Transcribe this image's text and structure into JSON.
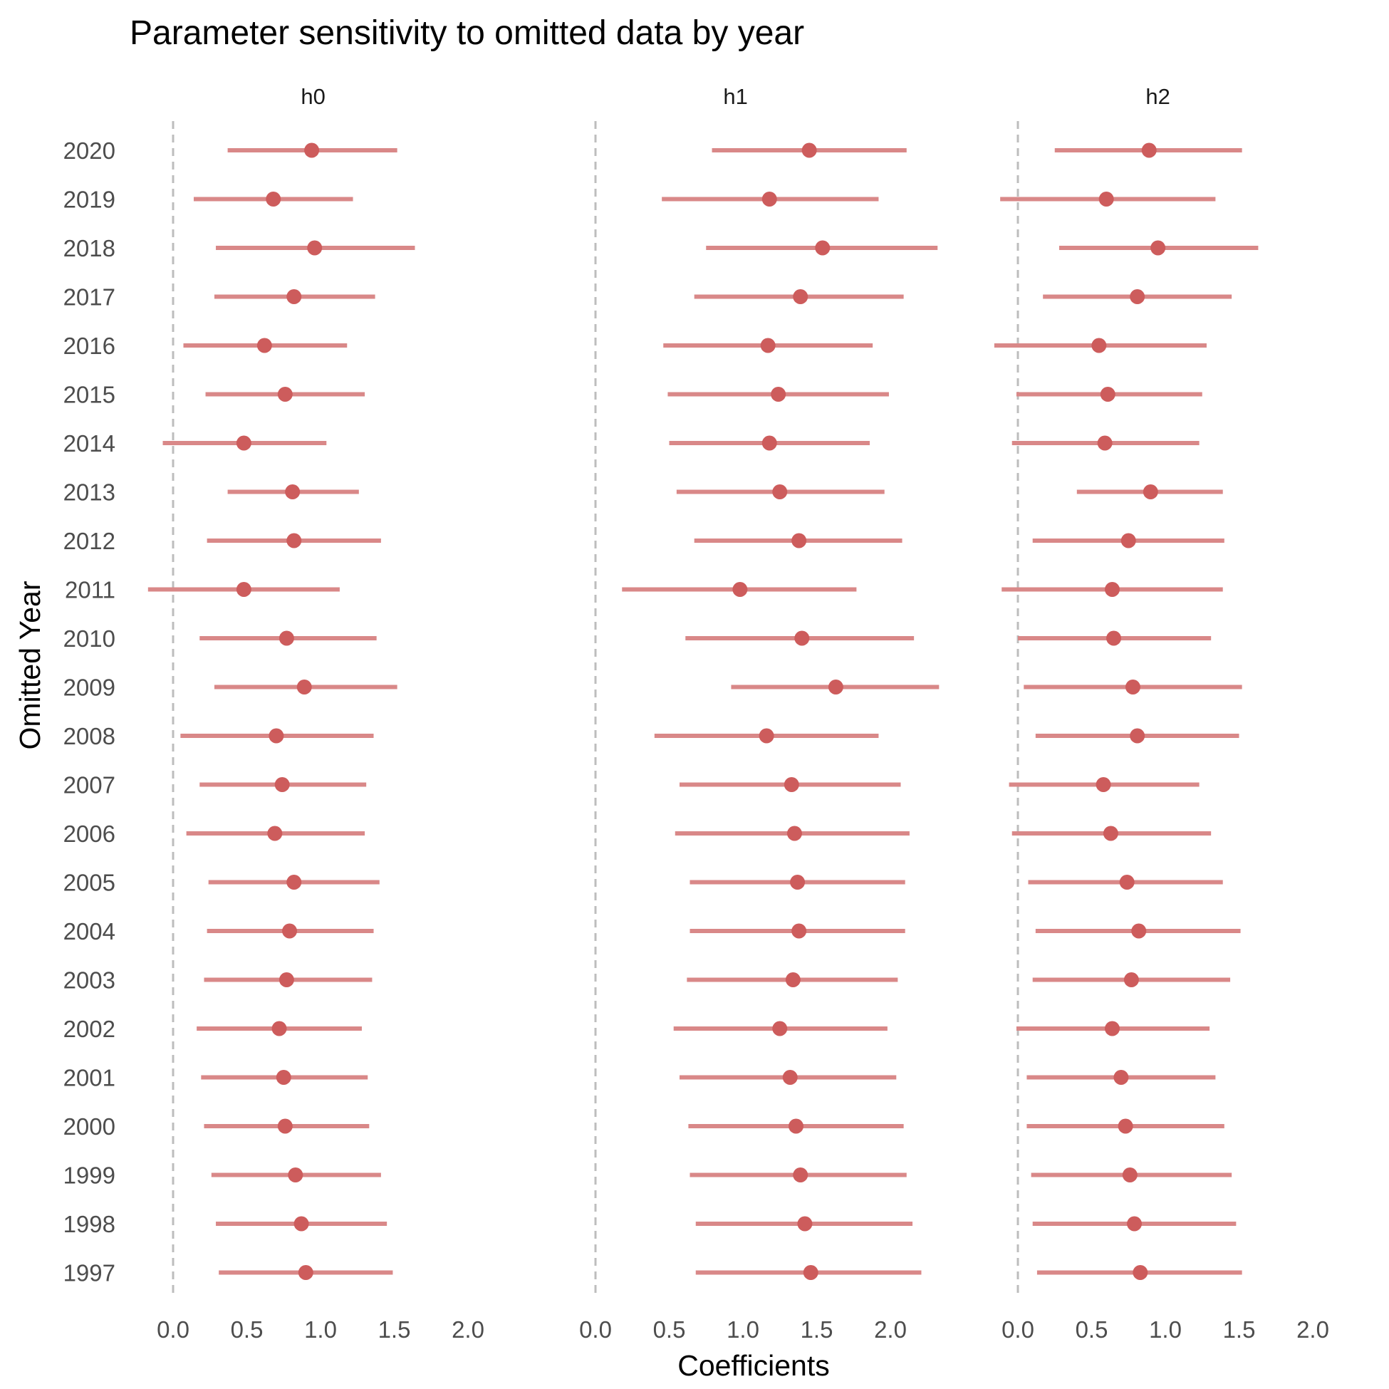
{
  "chart_data": {
    "type": "scatter",
    "subtype": "dot-and-interval (coefficient plot), faceted",
    "title": "Parameter sensitivity to omitted data by year",
    "xlabel": "Coefficients",
    "ylabel": "Omitted Year",
    "xlim": [
      -0.2,
      2.1
    ],
    "x_ticks": [
      0.0,
      0.5,
      1.0,
      1.5,
      2.0
    ],
    "x_tick_labels": [
      "0.0",
      "0.5",
      "1.0",
      "1.5",
      "2.0"
    ],
    "reference_line": {
      "x": 0,
      "style": "dashed",
      "color": "#bdbdbd"
    },
    "grid": false,
    "colors": {
      "point": "#cd5c5c",
      "interval": "#d98888"
    },
    "categories": [
      "2020",
      "2019",
      "2018",
      "2017",
      "2016",
      "2015",
      "2014",
      "2013",
      "2012",
      "2011",
      "2010",
      "2009",
      "2008",
      "2007",
      "2006",
      "2005",
      "2004",
      "2003",
      "2002",
      "2001",
      "2000",
      "1999",
      "1998",
      "1997"
    ],
    "facets": [
      {
        "name": "h0",
        "estimate": [
          0.94,
          0.68,
          0.96,
          0.82,
          0.62,
          0.76,
          0.48,
          0.81,
          0.82,
          0.48,
          0.77,
          0.89,
          0.7,
          0.74,
          0.69,
          0.82,
          0.79,
          0.77,
          0.72,
          0.75,
          0.76,
          0.83,
          0.87,
          0.9
        ],
        "lower": [
          0.37,
          0.14,
          0.29,
          0.28,
          0.07,
          0.22,
          -0.07,
          0.37,
          0.23,
          -0.17,
          0.18,
          0.28,
          0.05,
          0.18,
          0.09,
          0.24,
          0.23,
          0.21,
          0.16,
          0.19,
          0.21,
          0.26,
          0.29,
          0.31
        ],
        "upper": [
          1.52,
          1.22,
          1.64,
          1.37,
          1.18,
          1.3,
          1.04,
          1.26,
          1.41,
          1.13,
          1.38,
          1.52,
          1.36,
          1.31,
          1.3,
          1.4,
          1.36,
          1.35,
          1.28,
          1.32,
          1.33,
          1.41,
          1.45,
          1.49
        ]
      },
      {
        "name": "h1",
        "estimate": [
          1.45,
          1.18,
          1.54,
          1.39,
          1.17,
          1.24,
          1.18,
          1.25,
          1.38,
          0.98,
          1.4,
          1.63,
          1.16,
          1.33,
          1.35,
          1.37,
          1.38,
          1.34,
          1.25,
          1.32,
          1.36,
          1.39,
          1.42,
          1.46
        ],
        "lower": [
          0.79,
          0.45,
          0.75,
          0.67,
          0.46,
          0.49,
          0.5,
          0.55,
          0.67,
          0.18,
          0.61,
          0.92,
          0.4,
          0.57,
          0.54,
          0.64,
          0.64,
          0.62,
          0.53,
          0.57,
          0.63,
          0.64,
          0.68,
          0.68
        ],
        "upper": [
          2.11,
          1.92,
          2.32,
          2.09,
          1.88,
          1.99,
          1.86,
          1.96,
          2.08,
          1.77,
          2.16,
          2.33,
          1.92,
          2.07,
          2.13,
          2.1,
          2.1,
          2.05,
          1.98,
          2.04,
          2.09,
          2.11,
          2.15,
          2.21
        ]
      },
      {
        "name": "h2",
        "estimate": [
          0.89,
          0.6,
          0.95,
          0.81,
          0.55,
          0.61,
          0.59,
          0.9,
          0.75,
          0.64,
          0.65,
          0.78,
          0.81,
          0.58,
          0.63,
          0.74,
          0.82,
          0.77,
          0.64,
          0.7,
          0.73,
          0.76,
          0.79,
          0.83
        ],
        "lower": [
          0.25,
          -0.12,
          0.28,
          0.17,
          -0.16,
          -0.01,
          -0.04,
          0.4,
          0.1,
          -0.11,
          0.0,
          0.04,
          0.12,
          -0.06,
          -0.04,
          0.07,
          0.12,
          0.1,
          -0.01,
          0.06,
          0.06,
          0.09,
          0.1,
          0.13
        ],
        "upper": [
          1.52,
          1.34,
          1.63,
          1.45,
          1.28,
          1.25,
          1.23,
          1.39,
          1.4,
          1.39,
          1.31,
          1.52,
          1.5,
          1.23,
          1.31,
          1.39,
          1.51,
          1.44,
          1.3,
          1.34,
          1.4,
          1.45,
          1.48,
          1.52
        ]
      }
    ]
  }
}
